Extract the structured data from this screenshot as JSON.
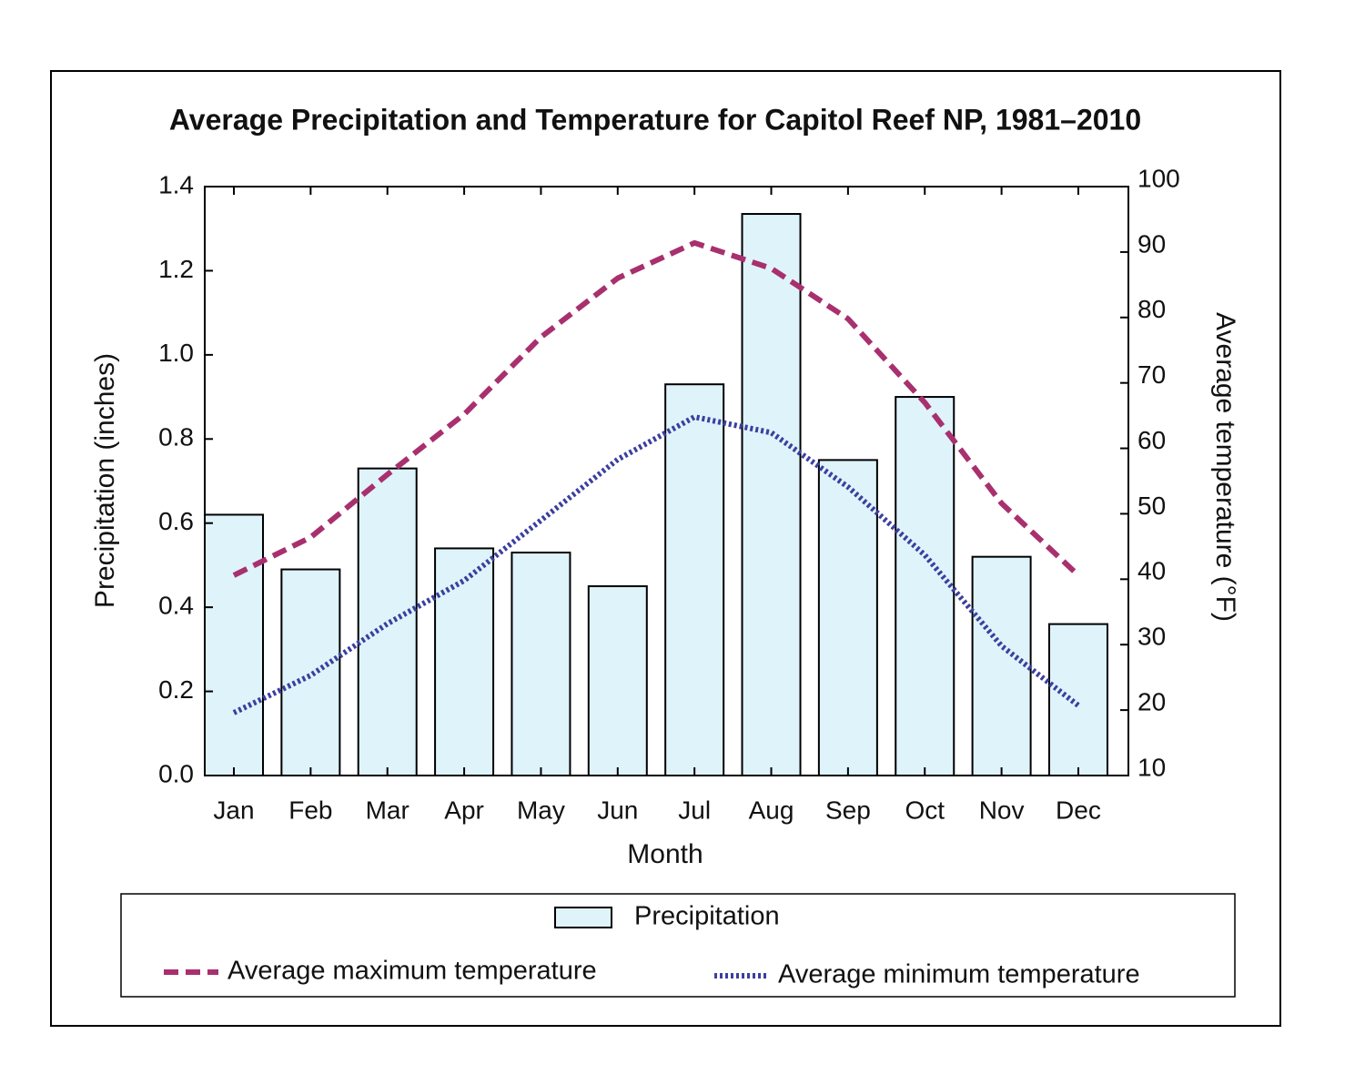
{
  "chart_data": {
    "type": "bar",
    "title": "Average Precipitation and Temperature for Capitol Reef NP, 1981–2010",
    "x_label": "Month",
    "y_label": "Precipitation (inches)",
    "y2_label": "Average temperature (°F)",
    "categories": [
      "Jan",
      "Feb",
      "Mar",
      "Apr",
      "May",
      "Jun",
      "Jul",
      "Aug",
      "Sep",
      "Oct",
      "Nov",
      "Dec"
    ],
    "ylim": [
      0,
      1.4
    ],
    "yticks": [
      {
        "value": 0,
        "label": "0.0"
      },
      {
        "value": 0.2,
        "label": "0.2"
      },
      {
        "value": 0.4,
        "label": "0.4"
      },
      {
        "value": 0.6,
        "label": "0.6"
      },
      {
        "value": 0.8,
        "label": "0.8"
      },
      {
        "value": 1.0,
        "label": "1.0"
      },
      {
        "value": 1.2,
        "label": "1.2"
      },
      {
        "value": 1.4,
        "label": "1.4"
      }
    ],
    "y2lim": [
      10,
      100
    ],
    "y2ticks": [
      10,
      20,
      30,
      40,
      50,
      60,
      70,
      80,
      90,
      100
    ],
    "series": [
      {
        "name": "Precipitation",
        "type": "bar",
        "color": "#dff3fa",
        "values": [
          0.62,
          0.49,
          0.73,
          0.54,
          0.53,
          0.45,
          0.93,
          1.335,
          0.75,
          0.9,
          0.52,
          0.36
        ]
      },
      {
        "name": "Average maximum temperature",
        "type": "line",
        "style": "dashed",
        "axis": "y2",
        "color": "#a8306e",
        "values": [
          40.6,
          46.4,
          56,
          65.2,
          77,
          86,
          91.4,
          87.5,
          79.8,
          67,
          51.6,
          40.6
        ]
      },
      {
        "name": "Average minimum temperature",
        "type": "line",
        "style": "dotted",
        "axis": "y2",
        "color": "#3b3f9e",
        "values": [
          19.6,
          25.3,
          33.2,
          39.8,
          49,
          58.3,
          64.8,
          62.4,
          54.1,
          43.7,
          29.8,
          20.7
        ]
      }
    ]
  }
}
